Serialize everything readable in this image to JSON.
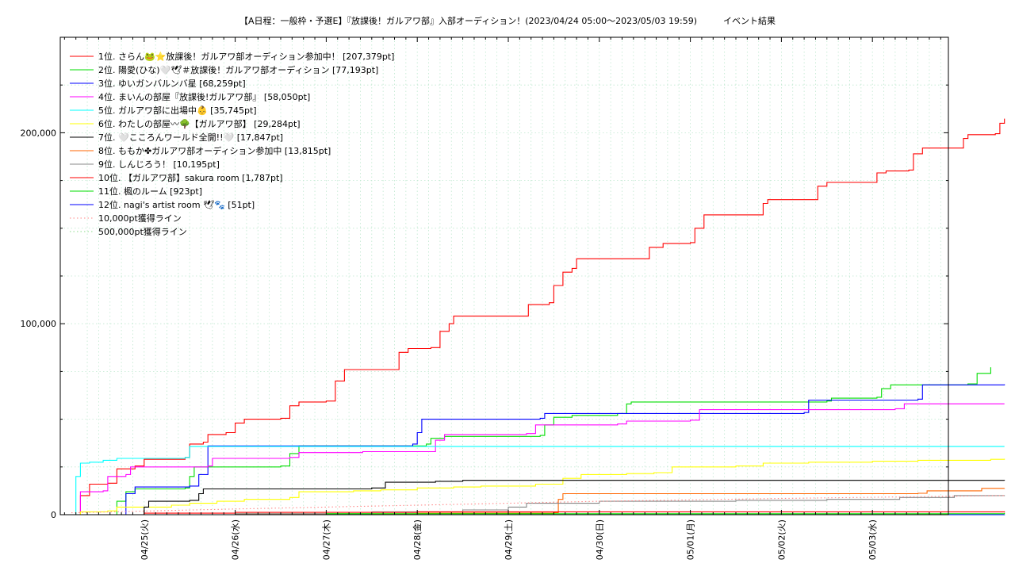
{
  "chart_data": {
    "type": "line",
    "title": "【A日程：一般枠・予選E】『放課後！ガルアワ部』入部オーディション！(2023/04/24 05:00〜2023/05/03 19:59)　　　イベント結果",
    "xlabel": "",
    "ylabel": "",
    "x_ticks": [
      "04/25(火)",
      "04/26(水)",
      "04/27(木)",
      "04/28(金)",
      "04/29(土)",
      "04/30(日)",
      "05/01(月)",
      "05/02(火)",
      "05/03(水)"
    ],
    "x_range_days": [
      0,
      9.62
    ],
    "ylim": [
      0,
      250000
    ],
    "y_ticks": [
      0,
      100000,
      200000
    ],
    "y_tick_labels": [
      "0",
      "100,000",
      "200,000"
    ],
    "grid": true,
    "legend_position": "top-left",
    "series": [
      {
        "name": "1位. さらん🐸⭐放課後！ガルアワ部オーディション参加中！ [207,379pt]",
        "color": "#ff0000",
        "points": [
          [
            0.25,
            0
          ],
          [
            0.3,
            10000
          ],
          [
            0.4,
            16000
          ],
          [
            0.6,
            16500
          ],
          [
            0.7,
            24000
          ],
          [
            0.9,
            25500
          ],
          [
            1.0,
            29000
          ],
          [
            1.45,
            30000
          ],
          [
            1.5,
            37000
          ],
          [
            1.65,
            38000
          ],
          [
            1.7,
            42000
          ],
          [
            1.9,
            43000
          ],
          [
            2.0,
            48000
          ],
          [
            2.1,
            50000
          ],
          [
            2.5,
            50500
          ],
          [
            2.6,
            57000
          ],
          [
            2.7,
            59000
          ],
          [
            3.0,
            59500
          ],
          [
            3.1,
            70000
          ],
          [
            3.2,
            76000
          ],
          [
            3.7,
            76000
          ],
          [
            3.8,
            85000
          ],
          [
            3.9,
            87000
          ],
          [
            4.15,
            87500
          ],
          [
            4.25,
            96000
          ],
          [
            4.35,
            100000
          ],
          [
            4.4,
            104000
          ],
          [
            5.2,
            104000
          ],
          [
            5.22,
            110000
          ],
          [
            5.45,
            111000
          ],
          [
            5.5,
            120000
          ],
          [
            5.6,
            127000
          ],
          [
            5.7,
            129000
          ],
          [
            5.75,
            134000
          ],
          [
            6.5,
            134000
          ],
          [
            6.55,
            140000
          ],
          [
            6.7,
            142000
          ],
          [
            7.0,
            142500
          ],
          [
            7.05,
            150000
          ],
          [
            7.15,
            157000
          ],
          [
            7.7,
            157000
          ],
          [
            7.8,
            163000
          ],
          [
            7.85,
            165000
          ],
          [
            8.3,
            165000
          ],
          [
            8.4,
            172000
          ],
          [
            8.5,
            174000
          ],
          [
            9.0,
            174000
          ],
          [
            9.05,
            179000
          ],
          [
            9.15,
            180000
          ],
          [
            9.4,
            180500
          ],
          [
            9.45,
            189000
          ],
          [
            9.55,
            192000
          ],
          [
            9.95,
            192000
          ],
          [
            10.0,
            197000
          ],
          [
            10.05,
            199000
          ],
          [
            10.35,
            199500
          ],
          [
            10.4,
            205000
          ],
          [
            10.45,
            207379
          ]
        ]
      },
      {
        "name": "2位. 陽愛(ひな)🤍🕊＃放課後！ガルアワ部オーディション [77,193pt]",
        "color": "#00dd00",
        "points": [
          [
            0.65,
            0
          ],
          [
            0.7,
            7000
          ],
          [
            0.8,
            12000
          ],
          [
            0.9,
            13500
          ],
          [
            1.45,
            14000
          ],
          [
            1.5,
            20000
          ],
          [
            1.55,
            25000
          ],
          [
            2.5,
            25500
          ],
          [
            2.6,
            32000
          ],
          [
            2.7,
            36000
          ],
          [
            4.1,
            37000
          ],
          [
            4.15,
            40000
          ],
          [
            4.3,
            41000
          ],
          [
            5.35,
            41500
          ],
          [
            5.4,
            47000
          ],
          [
            5.5,
            51000
          ],
          [
            5.7,
            52000
          ],
          [
            6.2,
            53000
          ],
          [
            6.3,
            58000
          ],
          [
            6.35,
            59000
          ],
          [
            8.5,
            59500
          ],
          [
            8.55,
            61000
          ],
          [
            9.05,
            61500
          ],
          [
            9.1,
            66000
          ],
          [
            9.2,
            68000
          ],
          [
            10.05,
            68500
          ],
          [
            10.15,
            74000
          ],
          [
            10.3,
            77193
          ]
        ]
      },
      {
        "name": "3位. ゆいガンバルンバ星 [68,259pt]",
        "color": "#0000ff",
        "points": [
          [
            0.75,
            0
          ],
          [
            0.8,
            11000
          ],
          [
            0.9,
            14500
          ],
          [
            1.5,
            15000
          ],
          [
            1.6,
            21000
          ],
          [
            1.7,
            36000
          ],
          [
            3.95,
            37000
          ],
          [
            4.0,
            43000
          ],
          [
            4.05,
            50000
          ],
          [
            5.35,
            50500
          ],
          [
            5.4,
            53000
          ],
          [
            8.25,
            53500
          ],
          [
            8.3,
            60000
          ],
          [
            9.5,
            60500
          ],
          [
            9.55,
            68000
          ],
          [
            10.45,
            68259
          ]
        ]
      },
      {
        "name": "4位. まいんの部屋『放課後!ガルアワ部』 [58,050pt]",
        "color": "#ff00ff",
        "points": [
          [
            0.22,
            0
          ],
          [
            0.3,
            12000
          ],
          [
            0.55,
            12500
          ],
          [
            0.6,
            20000
          ],
          [
            0.8,
            21000
          ],
          [
            0.85,
            25000
          ],
          [
            1.7,
            25500
          ],
          [
            1.75,
            29500
          ],
          [
            2.6,
            30000
          ],
          [
            2.7,
            32500
          ],
          [
            3.4,
            33000
          ],
          [
            4.2,
            39000
          ],
          [
            4.3,
            42000
          ],
          [
            5.2,
            42500
          ],
          [
            5.3,
            47000
          ],
          [
            6.2,
            47500
          ],
          [
            6.3,
            49000
          ],
          [
            7.0,
            49500
          ],
          [
            7.1,
            55000
          ],
          [
            9.25,
            55500
          ],
          [
            9.35,
            58050
          ],
          [
            10.45,
            58050
          ]
        ]
      },
      {
        "name": "5位. ガルアワ部に出場中👶 [35,745pt]",
        "color": "#00ffff",
        "points": [
          [
            0.2,
            0
          ],
          [
            0.25,
            20000
          ],
          [
            0.3,
            27000
          ],
          [
            0.4,
            27500
          ],
          [
            0.55,
            28500
          ],
          [
            0.7,
            29500
          ],
          [
            1.45,
            30000
          ],
          [
            1.5,
            35745
          ],
          [
            10.45,
            35745
          ]
        ]
      },
      {
        "name": "6位. わたしの部屋〰🌳【ガルアワ部】 [29,284pt]",
        "color": "#ffff00",
        "points": [
          [
            0.2,
            0
          ],
          [
            0.3,
            1500
          ],
          [
            0.6,
            2000
          ],
          [
            0.7,
            4000
          ],
          [
            1.3,
            5000
          ],
          [
            1.5,
            6000
          ],
          [
            1.8,
            7000
          ],
          [
            2.1,
            8000
          ],
          [
            2.6,
            9000
          ],
          [
            2.7,
            12000
          ],
          [
            3.3,
            12500
          ],
          [
            3.6,
            13000
          ],
          [
            4.0,
            14000
          ],
          [
            4.4,
            14500
          ],
          [
            4.7,
            15000
          ],
          [
            5.3,
            16000
          ],
          [
            5.6,
            19000
          ],
          [
            5.8,
            21000
          ],
          [
            6.3,
            21500
          ],
          [
            6.6,
            22000
          ],
          [
            6.8,
            25000
          ],
          [
            7.5,
            25500
          ],
          [
            7.8,
            27000
          ],
          [
            8.3,
            27500
          ],
          [
            9.0,
            28000
          ],
          [
            9.5,
            28500
          ],
          [
            10.3,
            29000
          ],
          [
            10.45,
            29284
          ]
        ]
      },
      {
        "name": "7位. 🤍こころんワールド全開!!🤍 [17,847pt]",
        "color": "#000000",
        "points": [
          [
            0.95,
            0
          ],
          [
            1.0,
            4000
          ],
          [
            1.05,
            7000
          ],
          [
            1.5,
            7500
          ],
          [
            1.6,
            11000
          ],
          [
            1.65,
            13500
          ],
          [
            3.5,
            14000
          ],
          [
            3.65,
            17000
          ],
          [
            4.2,
            17500
          ],
          [
            4.5,
            18000
          ],
          [
            10.45,
            17847
          ]
        ]
      },
      {
        "name": "8位. ももか✤ガルアワ部オーディション参加中 [13,815pt]",
        "color": "#ff6600",
        "points": [
          [
            0.2,
            0
          ],
          [
            2.0,
            500
          ],
          [
            4.0,
            800
          ],
          [
            5.5,
            1000
          ],
          [
            5.55,
            8000
          ],
          [
            5.6,
            11000
          ],
          [
            9.5,
            11200
          ],
          [
            9.6,
            12500
          ],
          [
            10.2,
            13800
          ],
          [
            10.45,
            13815
          ]
        ]
      },
      {
        "name": "9位. しんじろう！ [10,195pt]",
        "color": "#888888",
        "points": [
          [
            0.2,
            0
          ],
          [
            2.0,
            500
          ],
          [
            3.5,
            1500
          ],
          [
            4.5,
            2500
          ],
          [
            5.0,
            4000
          ],
          [
            5.2,
            6000
          ],
          [
            6.0,
            7000
          ],
          [
            7.5,
            7500
          ],
          [
            8.5,
            8000
          ],
          [
            9.3,
            9000
          ],
          [
            9.9,
            10000
          ],
          [
            10.45,
            10195
          ]
        ]
      },
      {
        "name": "10位. 【ガルアワ部】sakura room [1,787pt]",
        "color": "#ff0000",
        "points": [
          [
            0.2,
            0
          ],
          [
            1.0,
            800
          ],
          [
            2.0,
            1200
          ],
          [
            4.0,
            1500
          ],
          [
            10.45,
            1787
          ]
        ]
      },
      {
        "name": "11位. 楓のルーム [923pt]",
        "color": "#00dd00",
        "points": [
          [
            0.2,
            0
          ],
          [
            3.0,
            500
          ],
          [
            10.45,
            923
          ]
        ]
      },
      {
        "name": "12位. nagi's artist room 🕊🐾 [51pt]",
        "color": "#0000ff",
        "points": [
          [
            0.2,
            0
          ],
          [
            10.45,
            51
          ]
        ]
      },
      {
        "name": "10,000pt獲得ライン",
        "color": "#ff8888",
        "dashed": true,
        "points": [
          [
            0.2,
            1000
          ],
          [
            2.0,
            3000
          ],
          [
            4.0,
            5000
          ],
          [
            6.0,
            7000
          ],
          [
            8.0,
            8500
          ],
          [
            10.45,
            10000
          ]
        ]
      },
      {
        "name": "500,000pt獲得ライン",
        "color": "#88dd88",
        "dashed": true,
        "points": []
      }
    ]
  }
}
